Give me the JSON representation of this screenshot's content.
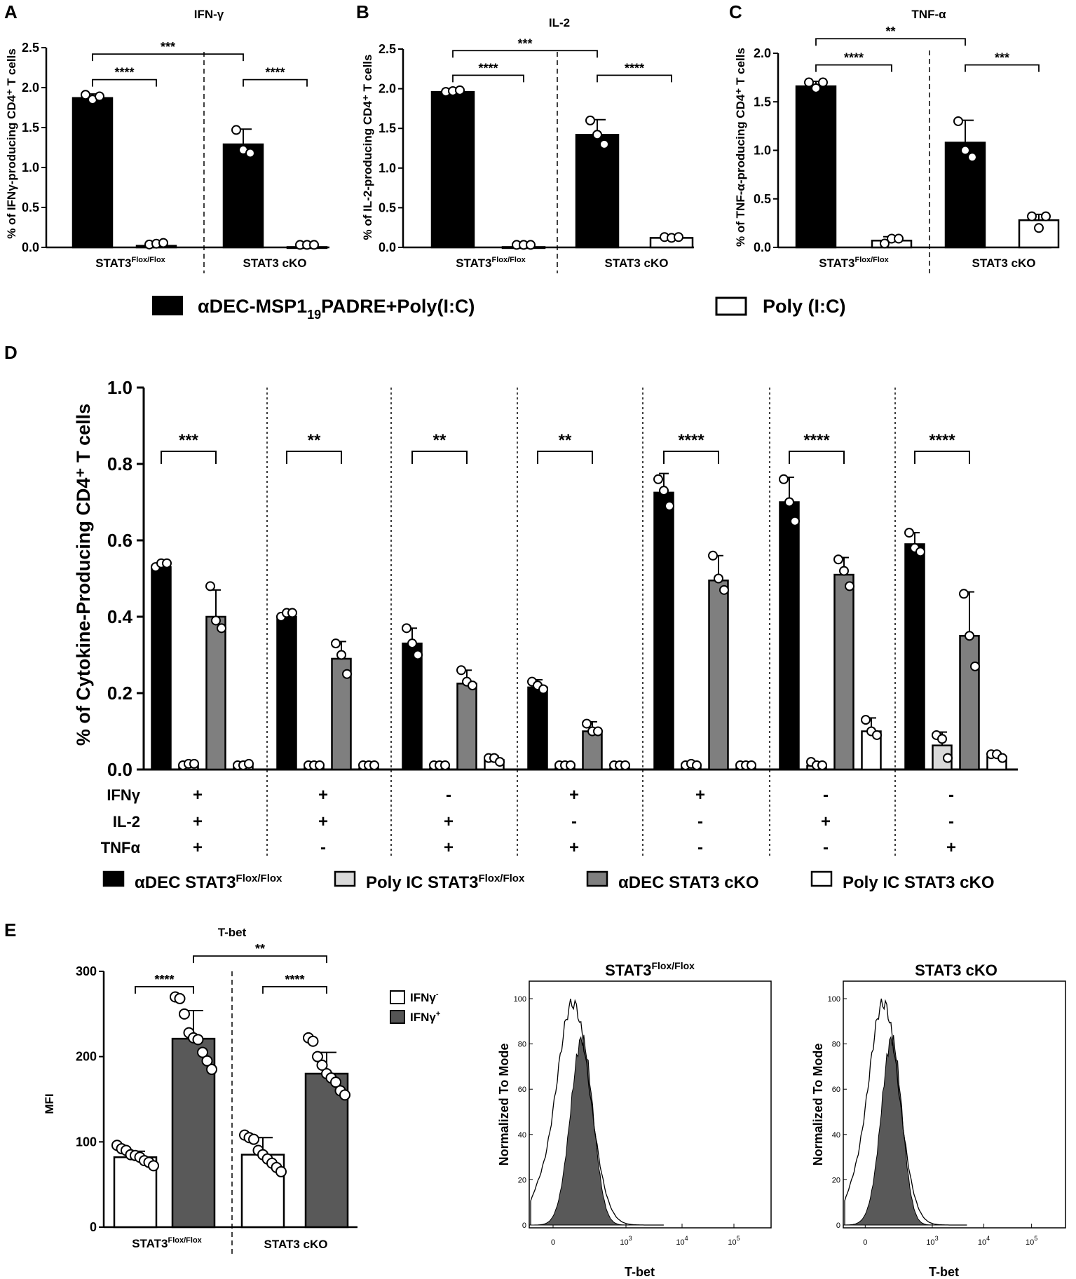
{
  "panels": {
    "A": {
      "label": "A",
      "title": "IFN-γ",
      "ylabel": "% of IFNγ-producing CD4⁺ T cells"
    },
    "B": {
      "label": "B",
      "title": "IL-2",
      "ylabel": "% of IL-2-producing CD4⁺ T cells"
    },
    "C": {
      "label": "C",
      "title": "TNF-α",
      "ylabel": "% of TNF-α-producing CD4⁺ T cells"
    },
    "D": {
      "label": "D",
      "ylabel": "% of Cytokine-Producing CD4⁺ T cells"
    },
    "E": {
      "label": "E",
      "title": "T-bet",
      "ylabel": "MFI"
    }
  },
  "group_labels": {
    "flox": "STAT3",
    "flox_sup": "Flox/Flox",
    "cko": "STAT3 cKO"
  },
  "legend_abc": {
    "black": "αDEC-MSP1₁₉PADRE+Poly(I:C)",
    "black_main": "αDEC-MSP1",
    "black_sub": "19",
    "black_tail": "PADRE+Poly(I:C)",
    "white": "Poly (I:C)"
  },
  "legend_d": [
    {
      "name": "αDEC STAT3",
      "sup": "Flox/Flox",
      "fill": "#000000"
    },
    {
      "name": "Poly IC STAT3",
      "sup": "Flox/Flox",
      "fill": "#d9d9d9"
    },
    {
      "name": "αDEC STAT3 cKO",
      "sup": "",
      "fill": "#7f7f7f"
    },
    {
      "name": "Poly IC STAT3 cKO",
      "sup": "",
      "fill": "#ffffff"
    }
  ],
  "legend_e": [
    {
      "name": "IFNγ",
      "sup": "-",
      "fill": "#ffffff"
    },
    {
      "name": "IFNγ",
      "sup": "+",
      "fill": "#555555"
    }
  ],
  "d_rows": {
    "labels": [
      "IFNγ",
      "IL-2",
      "TNFα"
    ],
    "values": [
      [
        "+",
        "+",
        "+"
      ],
      [
        "+",
        "+",
        "-"
      ],
      [
        "-",
        "+",
        "+"
      ],
      [
        "+",
        "-",
        "+"
      ],
      [
        "+",
        "-",
        "-"
      ],
      [
        "-",
        "+",
        "-"
      ],
      [
        "-",
        "-",
        "+"
      ]
    ]
  },
  "histograms": {
    "ylabel": "Normalized To Mode",
    "xlabel": "T-bet",
    "yticks": [
      "0",
      "20",
      "40",
      "60",
      "80",
      "100"
    ],
    "xticks": [
      "0",
      "10",
      "10",
      "10"
    ],
    "xtick_exp": [
      "",
      "3",
      "4",
      "5"
    ],
    "panels": [
      {
        "title": "STAT3",
        "title_sup": "Flox/Flox"
      },
      {
        "title": "STAT3 cKO",
        "title_sup": ""
      }
    ]
  },
  "chart_data": [
    {
      "type": "bar",
      "panel": "A",
      "title": "IFN-γ",
      "ylabel": "% of IFNγ-producing CD4⁺ T cells",
      "ylim": [
        0,
        2.5
      ],
      "yticks": [
        "0.0",
        "0.5",
        "1.0",
        "1.5",
        "2.0",
        "2.5"
      ],
      "groups": [
        "STAT3 Flox/Flox",
        "STAT3 cKO"
      ],
      "bars": [
        {
          "series": "αDEC-MSP1₁₉PADRE+Poly(I:C)",
          "value": 1.87,
          "err": 0.05,
          "points": [
            1.91,
            1.85,
            1.89
          ],
          "fill": "#000000"
        },
        {
          "series": "Poly (I:C)",
          "value": 0.02,
          "err": 0.01,
          "points": [
            0.01,
            0.02,
            0.03
          ],
          "fill": "#ffffff"
        },
        {
          "series": "αDEC-MSP1₁₉PADRE+Poly(I:C)",
          "value": 1.29,
          "err": 0.19,
          "points": [
            1.47,
            1.22,
            1.18
          ],
          "fill": "#000000"
        },
        {
          "series": "Poly (I:C)",
          "value": 0.005,
          "err": 0,
          "points": [
            0.005,
            0.005,
            0.005
          ],
          "fill": "#ffffff"
        }
      ],
      "brackets": [
        {
          "from": 0,
          "to": 1,
          "level": 2.1,
          "label": "****"
        },
        {
          "from": 2,
          "to": 3,
          "level": 2.1,
          "label": "****"
        },
        {
          "from": 0,
          "to": 2,
          "level": 2.42,
          "label": "***"
        }
      ]
    },
    {
      "type": "bar",
      "panel": "B",
      "title": "IL-2",
      "ylabel": "% of IL-2-producing CD4⁺ T cells",
      "ylim": [
        0,
        2.5
      ],
      "yticks": [
        "0.0",
        "0.5",
        "1.0",
        "1.5",
        "2.0",
        "2.5"
      ],
      "groups": [
        "STAT3 Flox/Flox",
        "STAT3 cKO"
      ],
      "bars": [
        {
          "series": "αDEC-MSP1₁₉PADRE+Poly(I:C)",
          "value": 1.96,
          "err": 0.03,
          "points": [
            1.96,
            1.97,
            1.98
          ],
          "fill": "#000000"
        },
        {
          "series": "Poly (I:C)",
          "value": 0.005,
          "err": 0,
          "points": [
            0.005,
            0.005,
            0.005
          ],
          "fill": "#ffffff"
        },
        {
          "series": "αDEC-MSP1₁₉PADRE+Poly(I:C)",
          "value": 1.42,
          "err": 0.19,
          "points": [
            1.6,
            1.42,
            1.3
          ],
          "fill": "#000000"
        },
        {
          "series": "Poly (I:C)",
          "value": 0.12,
          "err": 0.02,
          "points": [
            0.13,
            0.12,
            0.13
          ],
          "fill": "#ffffff"
        }
      ],
      "brackets": [
        {
          "from": 0,
          "to": 1,
          "level": 2.17,
          "label": "****"
        },
        {
          "from": 2,
          "to": 3,
          "level": 2.17,
          "label": "****"
        },
        {
          "from": 0,
          "to": 2,
          "level": 2.48,
          "label": "***"
        }
      ]
    },
    {
      "type": "bar",
      "panel": "C",
      "title": "TNF-α",
      "ylabel": "% of TNF-α-producing CD4⁺ T cells",
      "ylim": [
        0,
        2.0
      ],
      "yticks": [
        "0.0",
        "0.5",
        "1.0",
        "1.5",
        "2.0"
      ],
      "groups": [
        "STAT3 Flox/Flox",
        "STAT3 cKO"
      ],
      "bars": [
        {
          "series": "αDEC-MSP1₁₉PADRE+Poly(I:C)",
          "value": 1.66,
          "err": 0.05,
          "points": [
            1.7,
            1.64,
            1.7
          ],
          "fill": "#000000"
        },
        {
          "series": "Poly (I:C)",
          "value": 0.07,
          "err": 0.04,
          "points": [
            0.04,
            0.09,
            0.09
          ],
          "fill": "#ffffff"
        },
        {
          "series": "αDEC-MSP1₁₉PADRE+Poly(I:C)",
          "value": 1.08,
          "err": 0.23,
          "points": [
            1.3,
            1.0,
            0.93
          ],
          "fill": "#000000"
        },
        {
          "series": "Poly (I:C)",
          "value": 0.28,
          "err": 0.06,
          "points": [
            0.32,
            0.2,
            0.32
          ],
          "fill": "#ffffff"
        }
      ],
      "brackets": [
        {
          "from": 0,
          "to": 1,
          "level": 1.88,
          "label": "****"
        },
        {
          "from": 2,
          "to": 3,
          "level": 1.88,
          "label": "***"
        },
        {
          "from": 0,
          "to": 2,
          "level": 2.15,
          "label": "**"
        }
      ]
    },
    {
      "type": "bar",
      "panel": "D",
      "ylabel": "% of Cytokine-Producing CD4⁺ T cells",
      "ylim": [
        0,
        1.0
      ],
      "yticks": [
        "0.0",
        "0.2",
        "0.4",
        "0.6",
        "0.8",
        "1.0"
      ],
      "series_names": [
        "αDEC STAT3 Flox/Flox",
        "Poly IC STAT3 Flox/Flox",
        "αDEC STAT3 cKO",
        "Poly IC STAT3 cKO"
      ],
      "fills": [
        "#000000",
        "#d9d9d9",
        "#7f7f7f",
        "#ffffff"
      ],
      "groups": [
        {
          "values": [
            0.53,
            0.01,
            0.4,
            0.01
          ],
          "errs": [
            0.01,
            0.003,
            0.07,
            0.005
          ],
          "points": [
            [
              0.53,
              0.54,
              0.54
            ],
            [
              0.01,
              0.015,
              0.015
            ],
            [
              0.48,
              0.39,
              0.37
            ],
            [
              0.01,
              0.005,
              0.015
            ]
          ],
          "sig": "***"
        },
        {
          "values": [
            0.4,
            0.005,
            0.29,
            0.003
          ],
          "errs": [
            0.01,
            0.002,
            0.045,
            0.002
          ],
          "points": [
            [
              0.4,
              0.41,
              0.41
            ],
            [
              0.005,
              0.005,
              0.005
            ],
            [
              0.33,
              0.3,
              0.25
            ],
            [
              0.003,
              0.003,
              0.003
            ]
          ],
          "sig": "**"
        },
        {
          "values": [
            0.33,
            0.003,
            0.225,
            0.025
          ],
          "errs": [
            0.04,
            0.002,
            0.035,
            0.01
          ],
          "points": [
            [
              0.37,
              0.33,
              0.3
            ],
            [
              0.003,
              0.003,
              0.003
            ],
            [
              0.26,
              0.23,
              0.22
            ],
            [
              0.03,
              0.03,
              0.02
            ]
          ],
          "sig": "**"
        },
        {
          "values": [
            0.215,
            0.003,
            0.1,
            0.003
          ],
          "errs": [
            0.02,
            0.002,
            0.025,
            0.002
          ],
          "points": [
            [
              0.23,
              0.22,
              0.21
            ],
            [
              0.003,
              0.003,
              0.003
            ],
            [
              0.12,
              0.1,
              0.1
            ],
            [
              0.003,
              0.003,
              0.003
            ]
          ],
          "sig": "**"
        },
        {
          "values": [
            0.725,
            0.01,
            0.495,
            0.003
          ],
          "errs": [
            0.05,
            0.005,
            0.065,
            0.002
          ],
          "points": [
            [
              0.76,
              0.73,
              0.69
            ],
            [
              0.01,
              0.015,
              0.005
            ],
            [
              0.56,
              0.5,
              0.47
            ],
            [
              0.003,
              0.003,
              0.003
            ]
          ],
          "sig": "****"
        },
        {
          "values": [
            0.7,
            0.01,
            0.51,
            0.1
          ],
          "errs": [
            0.065,
            0.01,
            0.045,
            0.035
          ],
          "points": [
            [
              0.76,
              0.7,
              0.65
            ],
            [
              0.02,
              0.005,
              0.005
            ],
            [
              0.55,
              0.52,
              0.48
            ],
            [
              0.13,
              0.1,
              0.09
            ]
          ],
          "sig": "****"
        },
        {
          "values": [
            0.59,
            0.063,
            0.35,
            0.033
          ],
          "errs": [
            0.03,
            0.035,
            0.115,
            0.01
          ],
          "points": [
            [
              0.62,
              0.58,
              0.57
            ],
            [
              0.09,
              0.08,
              0.03
            ],
            [
              0.46,
              0.35,
              0.27
            ],
            [
              0.04,
              0.04,
              0.03
            ]
          ],
          "sig": "****"
        }
      ]
    },
    {
      "type": "bar",
      "panel": "E",
      "title": "T-bet",
      "ylabel": "MFI",
      "ylim": [
        0,
        300
      ],
      "yticks": [
        "0",
        "100",
        "200",
        "300"
      ],
      "groups": [
        "STAT3 Flox/Flox",
        "STAT3 cKO"
      ],
      "bars": [
        {
          "series": "IFNγ-",
          "value": 82,
          "err": 7,
          "points": [
            96,
            92,
            90,
            85,
            84,
            82,
            78,
            76,
            72
          ],
          "fill": "#ffffff"
        },
        {
          "series": "IFNγ+",
          "value": 221,
          "err": 33,
          "points": [
            270,
            268,
            250,
            228,
            222,
            220,
            205,
            195,
            185
          ],
          "fill": "#595959"
        },
        {
          "series": "IFNγ-",
          "value": 85,
          "err": 20,
          "points": [
            108,
            105,
            103,
            90,
            85,
            80,
            75,
            70,
            65
          ],
          "fill": "#ffffff"
        },
        {
          "series": "IFNγ+",
          "value": 180,
          "err": 25,
          "points": [
            222,
            218,
            200,
            190,
            180,
            175,
            170,
            160,
            155
          ],
          "fill": "#595959"
        }
      ],
      "brackets": [
        {
          "from": 0,
          "to": 1,
          "level": 282,
          "label": "****"
        },
        {
          "from": 2,
          "to": 3,
          "level": 282,
          "label": "****"
        },
        {
          "from": 1,
          "to": 3,
          "level": 318,
          "label": "**"
        }
      ]
    }
  ]
}
